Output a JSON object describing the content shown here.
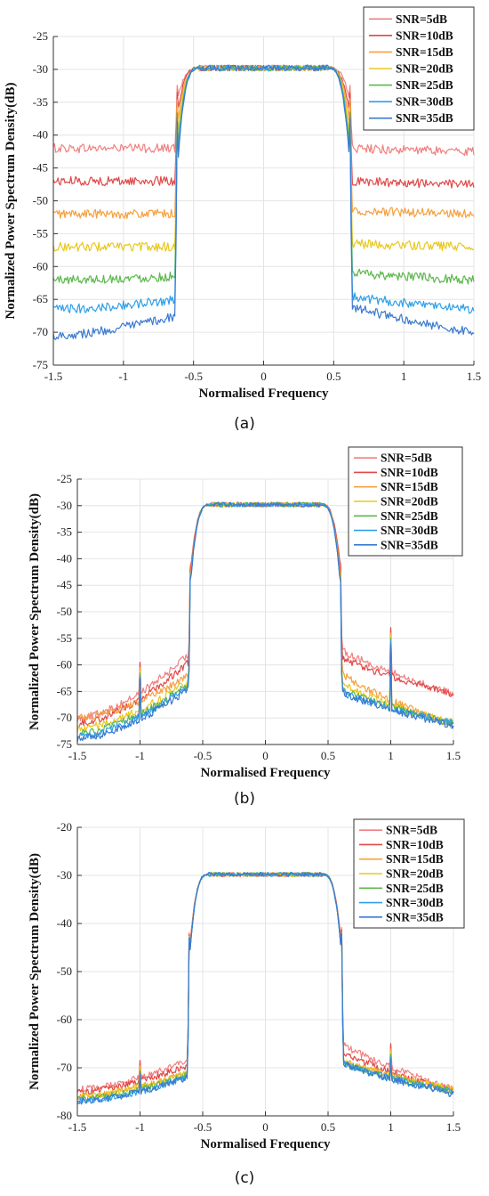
{
  "captions": [
    "(a)",
    "(b)",
    "(c)"
  ],
  "series_names": [
    "SNR=5dB",
    "SNR=10dB",
    "SNR=15dB",
    "SNR=20dB",
    "SNR=25dB",
    "SNR=30dB",
    "SNR=35dB"
  ],
  "series_colors": [
    "#f08080",
    "#e04848",
    "#f5a040",
    "#e8c820",
    "#5cb84c",
    "#2ea0e8",
    "#3a7ad0"
  ],
  "chart_data": [
    {
      "type": "line",
      "xlabel": "Normalised Frequency",
      "ylabel": "Normalized Power Spectrum Density(dB)",
      "xlim": [
        -1.5,
        1.5
      ],
      "ylim": [
        -75,
        -25
      ],
      "xticks": [
        "-1.5",
        "-1",
        "-0.5",
        "0",
        "0.5",
        "1",
        "1.5"
      ],
      "yticks": [
        "-25",
        "-30",
        "-35",
        "-40",
        "-45",
        "-50",
        "-55",
        "-60",
        "-65",
        "-70",
        "-75"
      ],
      "grid": true,
      "legend": "top-right",
      "passband_level": -29.8,
      "band_edge": 0.63,
      "series": [
        {
          "name": "SNR=5dB",
          "floor_left": [
            -42,
            -42
          ],
          "floor_right": [
            -42,
            -42.5
          ]
        },
        {
          "name": "SNR=10dB",
          "floor_left": [
            -47,
            -47
          ],
          "floor_right": [
            -47,
            -47.5
          ]
        },
        {
          "name": "SNR=15dB",
          "floor_left": [
            -52,
            -52
          ],
          "floor_right": [
            -51.5,
            -52
          ]
        },
        {
          "name": "SNR=20dB",
          "floor_left": [
            -57,
            -57
          ],
          "floor_right": [
            -56.5,
            -57
          ]
        },
        {
          "name": "SNR=25dB",
          "floor_left": [
            -62,
            -61.5
          ],
          "floor_right": [
            -61,
            -62
          ]
        },
        {
          "name": "SNR=30dB",
          "floor_left": [
            -66.5,
            -65
          ],
          "floor_right": [
            -64.5,
            -66.5
          ]
        },
        {
          "name": "SNR=35dB",
          "floor_left": [
            -70.5,
            -67.5
          ],
          "floor_right": [
            -66,
            -70
          ]
        }
      ]
    },
    {
      "type": "line",
      "xlabel": "Normalised Frequency",
      "ylabel": "Normalized Power Spectrum Density(dB)",
      "xlim": [
        -1.5,
        1.5
      ],
      "ylim": [
        -75,
        -25
      ],
      "xticks": [
        "-1.5",
        "-1",
        "-0.5",
        "0",
        "0.5",
        "1",
        "1.5"
      ],
      "yticks": [
        "-25",
        "-30",
        "-35",
        "-40",
        "-45",
        "-50",
        "-55",
        "-60",
        "-65",
        "-70",
        "-75"
      ],
      "grid": true,
      "legend": "top-right",
      "passband_level": -29.8,
      "band_edge": 0.61,
      "spikes": [
        {
          "x": -1,
          "value": -59.5
        },
        {
          "x": 1,
          "value": -53
        }
      ],
      "series": [
        {
          "name": "SNR=5dB",
          "floor_left": [
            -70,
            -58
          ],
          "floor_right": [
            -57,
            -65.5
          ]
        },
        {
          "name": "SNR=10dB",
          "floor_left": [
            -71,
            -59.5
          ],
          "floor_right": [
            -58.5,
            -65.5
          ]
        },
        {
          "name": "SNR=15dB",
          "floor_left": [
            -70,
            -62
          ],
          "floor_right": [
            -61.5,
            -71.5
          ]
        },
        {
          "name": "SNR=20dB",
          "floor_left": [
            -72,
            -63
          ],
          "floor_right": [
            -63.5,
            -71
          ]
        },
        {
          "name": "SNR=25dB",
          "floor_left": [
            -73,
            -63.5
          ],
          "floor_right": [
            -64.5,
            -71
          ]
        },
        {
          "name": "SNR=30dB",
          "floor_left": [
            -73.5,
            -64
          ],
          "floor_right": [
            -65,
            -71
          ]
        },
        {
          "name": "SNR=35dB",
          "floor_left": [
            -74,
            -64.5
          ],
          "floor_right": [
            -65,
            -71.5
          ]
        }
      ]
    },
    {
      "type": "line",
      "xlabel": "Normalised Frequency",
      "ylabel": "Normalized Power Spectrum Density(dB)",
      "xlim": [
        -1.5,
        1.5
      ],
      "ylim": [
        -80,
        -20
      ],
      "xticks": [
        "-1.5",
        "-1",
        "-0.5",
        "0",
        "0.5",
        "1",
        "1.5"
      ],
      "yticks": [
        "-20",
        "-30",
        "-40",
        "-50",
        "-60",
        "-70",
        "-80"
      ],
      "grid": true,
      "legend": "top-right",
      "passband_level": -29.8,
      "band_edge": 0.62,
      "spikes": [
        {
          "x": -1,
          "value": -68.5
        },
        {
          "x": 1,
          "value": -65
        }
      ],
      "series": [
        {
          "name": "SNR=5dB",
          "floor_left": [
            -74.5,
            -68.5
          ],
          "floor_right": [
            -65,
            -74.5
          ]
        },
        {
          "name": "SNR=10dB",
          "floor_left": [
            -75,
            -69.5
          ],
          "floor_right": [
            -66.5,
            -75
          ]
        },
        {
          "name": "SNR=15dB",
          "floor_left": [
            -76,
            -71
          ],
          "floor_right": [
            -68.5,
            -74.5
          ]
        },
        {
          "name": "SNR=20dB",
          "floor_left": [
            -76,
            -71
          ],
          "floor_right": [
            -68.5,
            -74.5
          ]
        },
        {
          "name": "SNR=25dB",
          "floor_left": [
            -76.5,
            -71.5
          ],
          "floor_right": [
            -69,
            -75
          ]
        },
        {
          "name": "SNR=30dB",
          "floor_left": [
            -77,
            -72
          ],
          "floor_right": [
            -69,
            -75
          ]
        },
        {
          "name": "SNR=35dB",
          "floor_left": [
            -77,
            -72
          ],
          "floor_right": [
            -69,
            -75.5
          ]
        }
      ]
    }
  ]
}
